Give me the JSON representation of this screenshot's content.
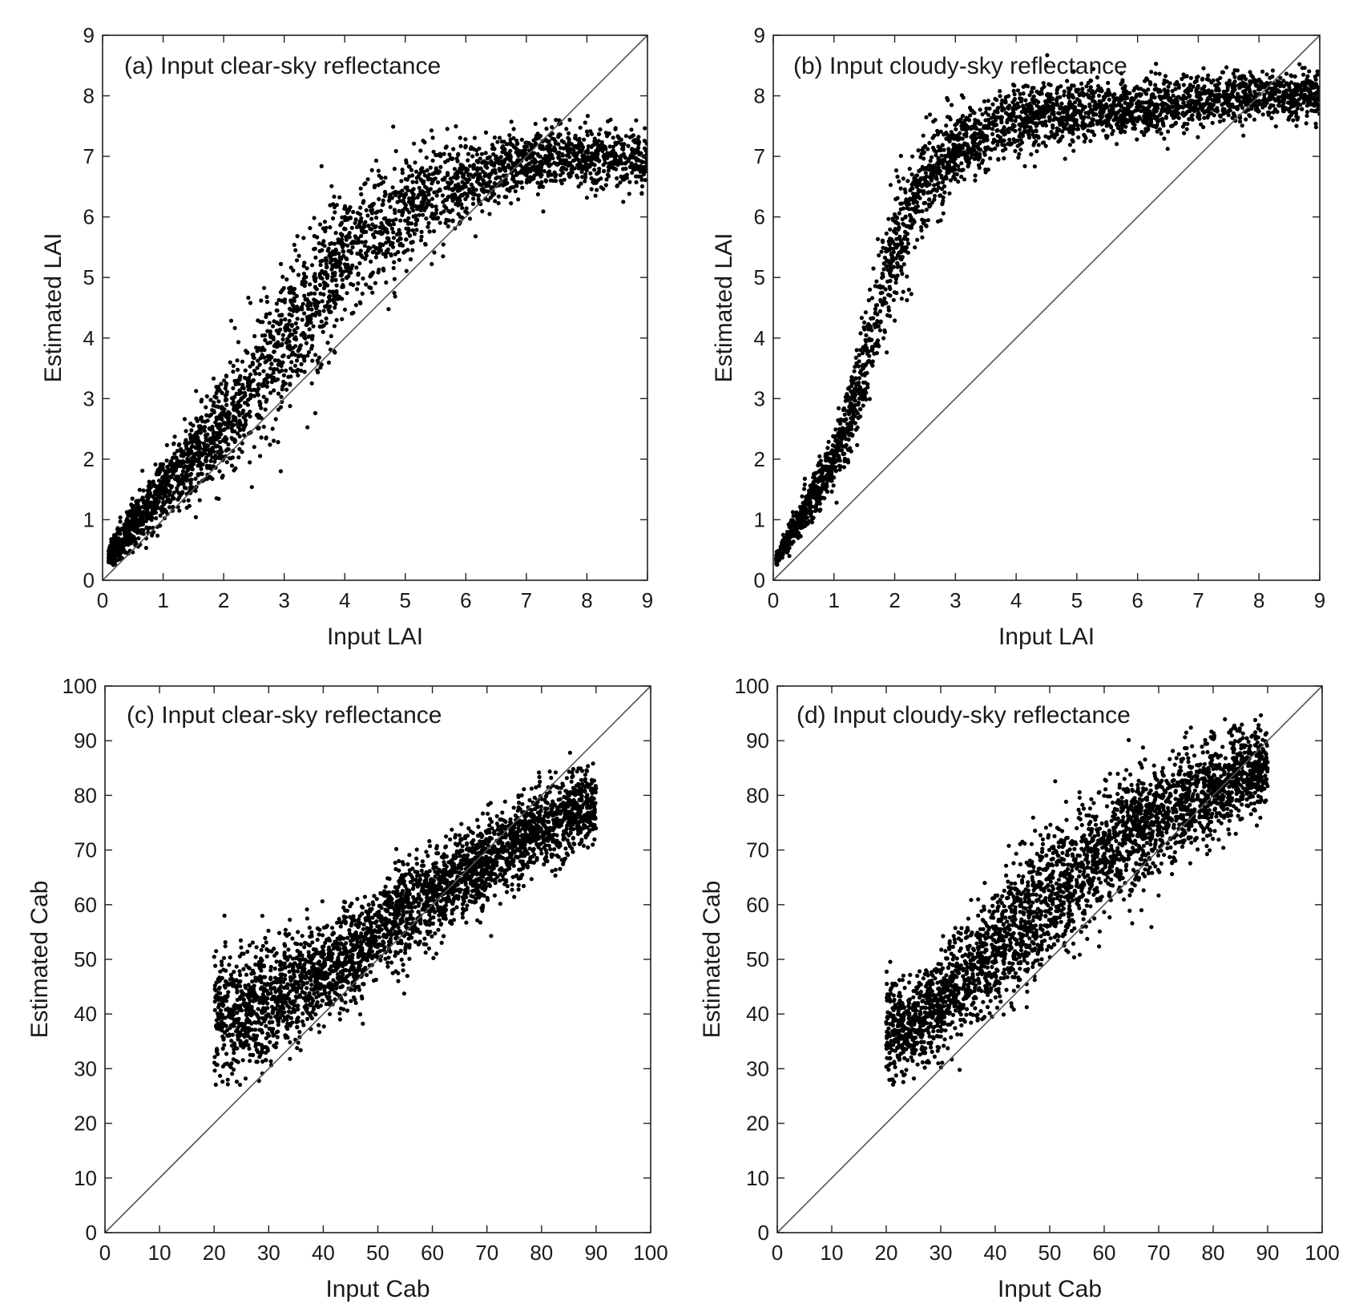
{
  "chart_data": [
    {
      "id": "a",
      "type": "scatter",
      "title": "(a) Input clear-sky reflectance",
      "xlabel": "Input LAI",
      "ylabel": "Estimated LAI",
      "xlim": [
        0,
        9
      ],
      "ylim": [
        0,
        9
      ],
      "xticks": [
        "0",
        "1",
        "2",
        "3",
        "4",
        "5",
        "6",
        "7",
        "8",
        "9"
      ],
      "yticks": [
        "0",
        "1",
        "2",
        "3",
        "4",
        "5",
        "6",
        "7",
        "8",
        "9"
      ],
      "reference_line": "1:1",
      "sampled_trend": {
        "x": [
          0.1,
          0.5,
          1.0,
          1.5,
          2.0,
          2.5,
          3.0,
          3.5,
          4.0,
          4.5,
          5.0,
          5.5,
          6.0,
          6.5,
          7.0,
          7.5,
          8.0,
          8.5,
          9.0
        ],
        "y_center": [
          0.4,
          0.9,
          1.5,
          2.0,
          2.6,
          3.2,
          3.9,
          4.6,
          5.3,
          5.8,
          6.1,
          6.4,
          6.6,
          6.8,
          6.9,
          7.0,
          7.0,
          7.0,
          7.0
        ],
        "y_spread": [
          0.15,
          0.35,
          0.5,
          0.6,
          0.8,
          1.0,
          1.1,
          1.1,
          1.1,
          1.0,
          0.9,
          0.8,
          0.6,
          0.5,
          0.45,
          0.45,
          0.45,
          0.45,
          0.45
        ]
      },
      "n_points": 3200
    },
    {
      "id": "b",
      "type": "scatter",
      "title": "(b) Input cloudy-sky reflectance",
      "xlabel": "Input LAI",
      "ylabel": "Estimated LAI",
      "xlim": [
        0,
        9
      ],
      "ylim": [
        0,
        9
      ],
      "xticks": [
        "0",
        "1",
        "2",
        "3",
        "4",
        "5",
        "6",
        "7",
        "8",
        "9"
      ],
      "yticks": [
        "0",
        "1",
        "2",
        "3",
        "4",
        "5",
        "6",
        "7",
        "8",
        "9"
      ],
      "reference_line": "1:1",
      "sampled_trend": {
        "x": [
          0.05,
          0.3,
          0.6,
          1.0,
          1.3,
          1.6,
          2.0,
          2.5,
          3.0,
          3.5,
          4.0,
          4.5,
          5.0,
          6.0,
          7.0,
          8.0,
          9.0
        ],
        "y_center": [
          0.35,
          0.8,
          1.3,
          2.0,
          2.8,
          3.9,
          5.5,
          6.6,
          7.1,
          7.4,
          7.6,
          7.7,
          7.7,
          7.8,
          7.9,
          8.0,
          8.0
        ],
        "y_spread": [
          0.1,
          0.2,
          0.3,
          0.4,
          0.6,
          0.8,
          0.9,
          0.7,
          0.55,
          0.5,
          0.5,
          0.5,
          0.5,
          0.45,
          0.4,
          0.35,
          0.35
        ]
      },
      "n_points": 3200
    },
    {
      "id": "c",
      "type": "scatter",
      "title": "(c) Input clear-sky reflectance",
      "xlabel": "Input Cab",
      "ylabel": "Estimated Cab",
      "xlim": [
        0,
        100
      ],
      "ylim": [
        0,
        100
      ],
      "xticks": [
        "0",
        "10",
        "20",
        "30",
        "40",
        "50",
        "60",
        "70",
        "80",
        "90",
        "100"
      ],
      "yticks": [
        "0",
        "10",
        "20",
        "30",
        "40",
        "50",
        "60",
        "70",
        "80",
        "90",
        "100"
      ],
      "reference_line": "1:1",
      "sampled_trend": {
        "x": [
          20,
          25,
          30,
          35,
          40,
          45,
          50,
          55,
          60,
          65,
          70,
          75,
          80,
          85,
          90
        ],
        "y_center": [
          40,
          40,
          42,
          45,
          48,
          51,
          55,
          59,
          62,
          65,
          68,
          71,
          74,
          77,
          78
        ],
        "y_spread": [
          10,
          10,
          10,
          9,
          8,
          8,
          8,
          8,
          8,
          7,
          7,
          7,
          7,
          6,
          6
        ]
      },
      "n_points": 3200
    },
    {
      "id": "d",
      "type": "scatter",
      "title": "(d) Input cloudy-sky reflectance",
      "xlabel": "Input Cab",
      "ylabel": "Estimated Cab",
      "xlim": [
        0,
        100
      ],
      "ylim": [
        0,
        100
      ],
      "xticks": [
        "0",
        "10",
        "20",
        "30",
        "40",
        "50",
        "60",
        "70",
        "80",
        "90",
        "100"
      ],
      "yticks": [
        "0",
        "10",
        "20",
        "30",
        "40",
        "50",
        "60",
        "70",
        "80",
        "90",
        "100"
      ],
      "reference_line": "1:1",
      "sampled_trend": {
        "x": [
          20,
          25,
          30,
          35,
          40,
          45,
          50,
          55,
          60,
          65,
          70,
          75,
          80,
          85,
          90
        ],
        "y_center": [
          38,
          38,
          42,
          47,
          52,
          57,
          62,
          66,
          70,
          73,
          76,
          79,
          81,
          84,
          84
        ],
        "y_spread": [
          8,
          7,
          8,
          9,
          10,
          11,
          11,
          11,
          10,
          10,
          9,
          9,
          8,
          7,
          6
        ]
      },
      "n_points": 3200
    }
  ]
}
